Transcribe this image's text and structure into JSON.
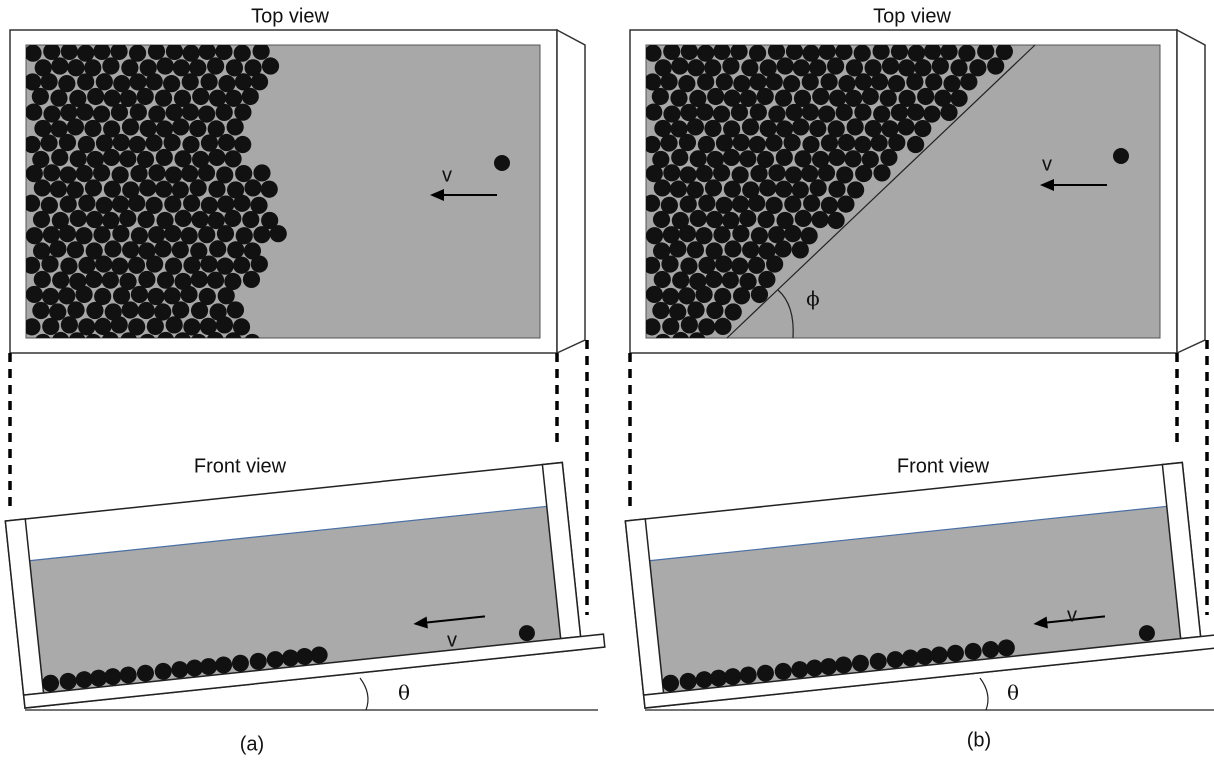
{
  "panels": [
    {
      "top_label": "Top view",
      "front_label": "Front view",
      "velocity_top": "v",
      "velocity_front": "v",
      "angle_theta": "θ",
      "caption": "(a)"
    },
    {
      "top_label": "Top view",
      "front_label": "Front view",
      "velocity_top": "v",
      "velocity_front": "v",
      "angle_theta": "θ",
      "angle_phi": "ϕ",
      "caption": "(b)"
    }
  ]
}
